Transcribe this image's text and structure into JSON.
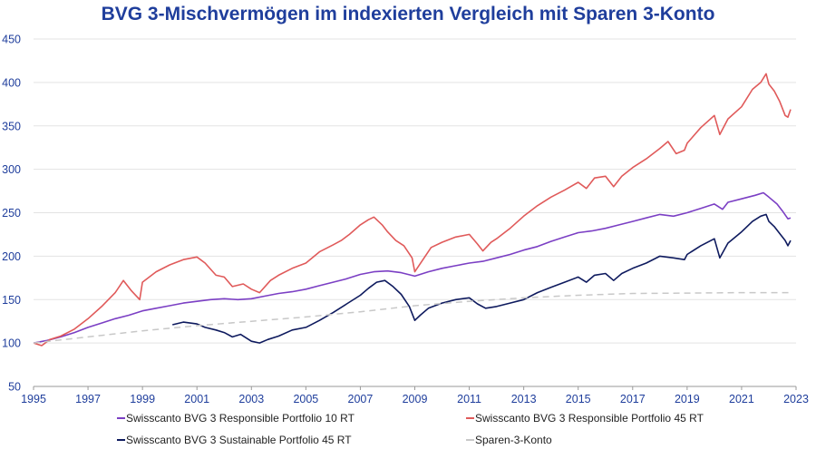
{
  "chart_data": {
    "type": "line",
    "title": "BVG 3-Mischvermögen im indexierten Vergleich mit Sparen 3-Konto",
    "xlabel": "",
    "ylabel": "",
    "xlim": [
      1995,
      2023
    ],
    "ylim": [
      50,
      450
    ],
    "y_ticks": [
      "50",
      "100",
      "150",
      "200",
      "250",
      "300",
      "350",
      "400",
      "450"
    ],
    "x_ticks": [
      "1995",
      "1997",
      "1999",
      "2001",
      "2003",
      "2005",
      "2007",
      "2009",
      "2011",
      "2013",
      "2015",
      "2017",
      "2019",
      "2021",
      "2023"
    ],
    "grid": "horizontal",
    "legend_position": "bottom",
    "series": [
      {
        "name": "Swisscanto BVG 3 Responsible Portfolio 10 RT",
        "color": "#7b3fc4",
        "style": "solid",
        "points": [
          [
            1995,
            100
          ],
          [
            1995.5,
            103
          ],
          [
            1996,
            107
          ],
          [
            1996.5,
            112
          ],
          [
            1997,
            118
          ],
          [
            1997.5,
            123
          ],
          [
            1998,
            128
          ],
          [
            1998.5,
            132
          ],
          [
            1999,
            137
          ],
          [
            1999.5,
            140
          ],
          [
            2000,
            143
          ],
          [
            2000.5,
            146
          ],
          [
            2001,
            148
          ],
          [
            2001.5,
            150
          ],
          [
            2002,
            151
          ],
          [
            2002.5,
            150
          ],
          [
            2003,
            151
          ],
          [
            2003.5,
            154
          ],
          [
            2004,
            157
          ],
          [
            2004.5,
            159
          ],
          [
            2005,
            162
          ],
          [
            2005.5,
            166
          ],
          [
            2006,
            170
          ],
          [
            2006.5,
            174
          ],
          [
            2007,
            179
          ],
          [
            2007.5,
            182
          ],
          [
            2008,
            183
          ],
          [
            2008.5,
            181
          ],
          [
            2009,
            177
          ],
          [
            2009.5,
            182
          ],
          [
            2010,
            186
          ],
          [
            2010.5,
            189
          ],
          [
            2011,
            192
          ],
          [
            2011.5,
            194
          ],
          [
            2012,
            198
          ],
          [
            2012.5,
            202
          ],
          [
            2013,
            207
          ],
          [
            2013.5,
            211
          ],
          [
            2014,
            217
          ],
          [
            2014.5,
            222
          ],
          [
            2015,
            227
          ],
          [
            2015.5,
            229
          ],
          [
            2016,
            232
          ],
          [
            2016.5,
            236
          ],
          [
            2017,
            240
          ],
          [
            2017.5,
            244
          ],
          [
            2018,
            248
          ],
          [
            2018.5,
            246
          ],
          [
            2019,
            250
          ],
          [
            2019.5,
            255
          ],
          [
            2020,
            260
          ],
          [
            2020.3,
            254
          ],
          [
            2020.5,
            262
          ],
          [
            2021,
            266
          ],
          [
            2021.5,
            270
          ],
          [
            2021.8,
            273
          ],
          [
            2022,
            268
          ],
          [
            2022.3,
            260
          ],
          [
            2022.5,
            252
          ],
          [
            2022.7,
            243
          ],
          [
            2022.8,
            244
          ]
        ]
      },
      {
        "name": "Swisscanto BVG 3 Responsible Portfolio 45 RT",
        "color": "#e05a5a",
        "style": "solid",
        "points": [
          [
            1995,
            100
          ],
          [
            1995.3,
            97
          ],
          [
            1995.6,
            104
          ],
          [
            1996,
            108
          ],
          [
            1996.5,
            116
          ],
          [
            1997,
            128
          ],
          [
            1997.5,
            142
          ],
          [
            1998,
            158
          ],
          [
            1998.3,
            172
          ],
          [
            1998.6,
            160
          ],
          [
            1998.9,
            150
          ],
          [
            1999,
            170
          ],
          [
            1999.5,
            182
          ],
          [
            2000,
            190
          ],
          [
            2000.5,
            196
          ],
          [
            2001,
            199
          ],
          [
            2001.3,
            192
          ],
          [
            2001.7,
            178
          ],
          [
            2002,
            176
          ],
          [
            2002.3,
            165
          ],
          [
            2002.7,
            168
          ],
          [
            2003,
            162
          ],
          [
            2003.3,
            158
          ],
          [
            2003.7,
            172
          ],
          [
            2004,
            178
          ],
          [
            2004.5,
            186
          ],
          [
            2005,
            192
          ],
          [
            2005.5,
            205
          ],
          [
            2006,
            213
          ],
          [
            2006.3,
            218
          ],
          [
            2006.6,
            225
          ],
          [
            2007,
            236
          ],
          [
            2007.3,
            242
          ],
          [
            2007.5,
            245
          ],
          [
            2007.8,
            236
          ],
          [
            2008,
            228
          ],
          [
            2008.3,
            218
          ],
          [
            2008.6,
            212
          ],
          [
            2008.9,
            198
          ],
          [
            2009,
            182
          ],
          [
            2009.3,
            196
          ],
          [
            2009.6,
            210
          ],
          [
            2010,
            216
          ],
          [
            2010.5,
            222
          ],
          [
            2011,
            225
          ],
          [
            2011.3,
            214
          ],
          [
            2011.5,
            206
          ],
          [
            2011.8,
            216
          ],
          [
            2012,
            220
          ],
          [
            2012.5,
            232
          ],
          [
            2013,
            246
          ],
          [
            2013.5,
            258
          ],
          [
            2014,
            268
          ],
          [
            2014.5,
            276
          ],
          [
            2015,
            285
          ],
          [
            2015.3,
            278
          ],
          [
            2015.6,
            290
          ],
          [
            2016,
            292
          ],
          [
            2016.3,
            280
          ],
          [
            2016.6,
            292
          ],
          [
            2017,
            302
          ],
          [
            2017.5,
            312
          ],
          [
            2018,
            324
          ],
          [
            2018.3,
            332
          ],
          [
            2018.6,
            318
          ],
          [
            2018.9,
            322
          ],
          [
            2019,
            330
          ],
          [
            2019.5,
            348
          ],
          [
            2020,
            362
          ],
          [
            2020.2,
            340
          ],
          [
            2020.5,
            358
          ],
          [
            2021,
            372
          ],
          [
            2021.4,
            392
          ],
          [
            2021.7,
            400
          ],
          [
            2021.9,
            410
          ],
          [
            2022,
            398
          ],
          [
            2022.2,
            390
          ],
          [
            2022.4,
            378
          ],
          [
            2022.6,
            362
          ],
          [
            2022.7,
            360
          ],
          [
            2022.8,
            369
          ]
        ]
      },
      {
        "name": "Swisscanto BVG 3 Sustainable Portfolio 45 RT",
        "color": "#0e1a5e",
        "style": "solid",
        "points": [
          [
            2000.1,
            121
          ],
          [
            2000.5,
            124
          ],
          [
            2001,
            122
          ],
          [
            2001.3,
            118
          ],
          [
            2001.7,
            115
          ],
          [
            2002,
            112
          ],
          [
            2002.3,
            107
          ],
          [
            2002.6,
            110
          ],
          [
            2003,
            102
          ],
          [
            2003.3,
            100
          ],
          [
            2003.6,
            104
          ],
          [
            2004,
            108
          ],
          [
            2004.5,
            115
          ],
          [
            2005,
            118
          ],
          [
            2005.5,
            126
          ],
          [
            2006,
            135
          ],
          [
            2006.5,
            145
          ],
          [
            2007,
            155
          ],
          [
            2007.3,
            163
          ],
          [
            2007.6,
            170
          ],
          [
            2007.9,
            172
          ],
          [
            2008.2,
            165
          ],
          [
            2008.5,
            156
          ],
          [
            2008.8,
            142
          ],
          [
            2009,
            126
          ],
          [
            2009.2,
            132
          ],
          [
            2009.5,
            140
          ],
          [
            2010,
            146
          ],
          [
            2010.5,
            150
          ],
          [
            2011,
            152
          ],
          [
            2011.3,
            145
          ],
          [
            2011.6,
            140
          ],
          [
            2012,
            142
          ],
          [
            2012.5,
            146
          ],
          [
            2013,
            150
          ],
          [
            2013.5,
            158
          ],
          [
            2014,
            164
          ],
          [
            2014.5,
            170
          ],
          [
            2015,
            176
          ],
          [
            2015.3,
            170
          ],
          [
            2015.6,
            178
          ],
          [
            2016,
            180
          ],
          [
            2016.3,
            172
          ],
          [
            2016.6,
            180
          ],
          [
            2017,
            186
          ],
          [
            2017.5,
            192
          ],
          [
            2018,
            200
          ],
          [
            2018.5,
            198
          ],
          [
            2018.9,
            196
          ],
          [
            2019,
            202
          ],
          [
            2019.5,
            212
          ],
          [
            2020,
            220
          ],
          [
            2020.2,
            198
          ],
          [
            2020.5,
            215
          ],
          [
            2021,
            228
          ],
          [
            2021.4,
            240
          ],
          [
            2021.7,
            246
          ],
          [
            2021.9,
            248
          ],
          [
            2022,
            240
          ],
          [
            2022.2,
            234
          ],
          [
            2022.4,
            226
          ],
          [
            2022.6,
            218
          ],
          [
            2022.7,
            212
          ],
          [
            2022.8,
            218
          ]
        ]
      },
      {
        "name": "Sparen-3-Konto",
        "color": "#c8c8c8",
        "style": "dashed",
        "points": [
          [
            1995,
            100
          ],
          [
            1997,
            107
          ],
          [
            1999,
            114
          ],
          [
            2001,
            120
          ],
          [
            2003,
            125
          ],
          [
            2005,
            130
          ],
          [
            2007,
            136
          ],
          [
            2009,
            143
          ],
          [
            2011,
            148
          ],
          [
            2013,
            152
          ],
          [
            2015,
            155
          ],
          [
            2017,
            157
          ],
          [
            2019,
            157.5
          ],
          [
            2021,
            158
          ],
          [
            2022.8,
            158
          ]
        ]
      }
    ]
  }
}
